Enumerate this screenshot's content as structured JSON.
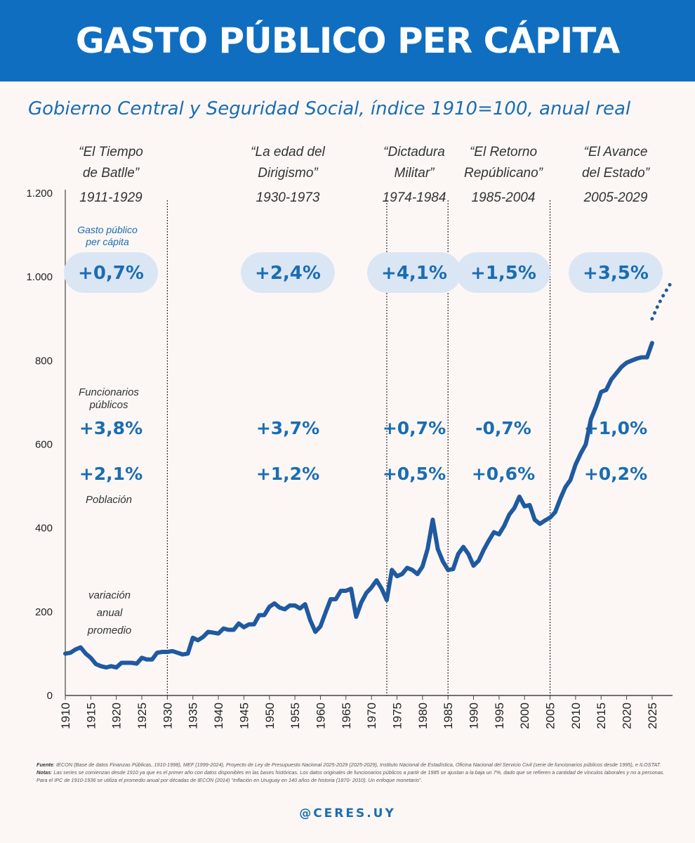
{
  "header": {
    "title": "GASTO PÚBLICO PER CÁPITA",
    "subtitle": "Gobierno Central y Seguridad Social, índice 1910=100, anual real"
  },
  "colors": {
    "banner": "#0f6ec0",
    "line": "#1f5aa0",
    "accent_text": "#1a6db3",
    "pill": "#dbe6f4"
  },
  "labels": {
    "gasto_label": [
      "Gasto público",
      "per cápita"
    ],
    "funcionarios_label": [
      "Funcionarios",
      "públicos"
    ],
    "poblacion_label": "Población",
    "variacion_label": [
      "variación",
      "anual",
      "promedio"
    ]
  },
  "eras": [
    {
      "title": [
        "“El Tiempo",
        "de Batlle”"
      ],
      "years": "1911-1929",
      "gasto": "+0,7%",
      "funcionarios": "+3,8%",
      "poblacion": "+2,1%"
    },
    {
      "title": [
        "“La edad del",
        "Dirigismo”"
      ],
      "years": "1930-1973",
      "gasto": "+2,4%",
      "funcionarios": "+3,7%",
      "poblacion": "+1,2%"
    },
    {
      "title": [
        "“Dictadura",
        "Militar”"
      ],
      "years": "1974-1984",
      "gasto": "+4,1%",
      "funcionarios": "+0,7%",
      "poblacion": "+0,5%"
    },
    {
      "title": [
        "“El Retorno",
        "Repúblicano”"
      ],
      "years": "1985-2004",
      "gasto": "+1,5%",
      "funcionarios": "-0,7%",
      "poblacion": "+0,6%"
    },
    {
      "title": [
        "“El Avance",
        "del Estado”"
      ],
      "years": "2005-2029",
      "gasto": "+3,5%",
      "funcionarios": "+1,0%",
      "poblacion": "+0,2%"
    }
  ],
  "footer": {
    "fuente_label": "Fuente",
    "fuente_text": ": IECON (Base de datos Finanzas Públicas, 1910-1998), MEF (1999-2024), Proyecto de Ley de Presupuesto Nacional 2025-2029 (2025-2029), Instituto Nacional de Estadística, Oficina Nacional del Servicio Civil (serie de funcionarios públicos desde 1995), e ILOSTAT. ",
    "notas_label": "Notas",
    "notas_text": ": Las series se comienzan desde 1910 ya que es el primer año con datos disponibles en las bases históricas. Los datos originales de funcionarios públicos a partir de 1985 se ajustan a la baja un 7%, dado que se refieren a cantidad de vínculos laborales y no a personas. Para el IPC de 1910-1936 se utiliza el promedio anual por décadas de IECON (2014) “Inflación en Uruguay en 140 años de historia (1870- 2010). Un enfoque monetario”.",
    "handle": "@CERES.UY"
  },
  "chart_data": {
    "type": "line",
    "title": "GASTO PÚBLICO PER CÁPITA",
    "subtitle": "Gobierno Central y Seguridad Social, índice 1910=100, anual real",
    "xlim": [
      1910,
      2029
    ],
    "ylim": [
      0,
      1200
    ],
    "xticks": [
      "1910",
      "1915",
      "1920",
      "1925",
      "1930",
      "1935",
      "1940",
      "1945",
      "1950",
      "1955",
      "1960",
      "1965",
      "1970",
      "1975",
      "1980",
      "1985",
      "1990",
      "1995",
      "2000",
      "2005",
      "2010",
      "2015",
      "2020",
      "2025"
    ],
    "yticks": [
      {
        "v": 0,
        "label": "0"
      },
      {
        "v": 200,
        "label": "200"
      },
      {
        "v": 400,
        "label": "400"
      },
      {
        "v": 600,
        "label": "600"
      },
      {
        "v": 800,
        "label": "800"
      },
      {
        "v": 1000,
        "label": "1.000"
      },
      {
        "v": 1200,
        "label": "1.200"
      }
    ],
    "era_dividers": [
      1930,
      1973,
      1985,
      2005
    ],
    "series": [
      {
        "name": "Gasto público per cápita (histórico)",
        "x": [
          1910,
          1911,
          1912,
          1913,
          1914,
          1915,
          1916,
          1917,
          1918,
          1919,
          1920,
          1921,
          1922,
          1923,
          1924,
          1925,
          1926,
          1927,
          1928,
          1929,
          1930,
          1931,
          1932,
          1933,
          1934,
          1935,
          1936,
          1937,
          1938,
          1939,
          1940,
          1941,
          1942,
          1943,
          1944,
          1945,
          1946,
          1947,
          1948,
          1949,
          1950,
          1951,
          1952,
          1953,
          1954,
          1955,
          1956,
          1957,
          1958,
          1959,
          1960,
          1961,
          1962,
          1963,
          1964,
          1965,
          1966,
          1967,
          1968,
          1969,
          1970,
          1971,
          1972,
          1973,
          1974,
          1975,
          1976,
          1977,
          1978,
          1979,
          1980,
          1981,
          1982,
          1983,
          1984,
          1985,
          1986,
          1987,
          1988,
          1989,
          1990,
          1991,
          1992,
          1993,
          1994,
          1995,
          1996,
          1997,
          1998,
          1999,
          2000,
          2001,
          2002,
          2003,
          2004,
          2005,
          2006,
          2007,
          2008,
          2009,
          2010,
          2011,
          2012,
          2013,
          2014,
          2015,
          2016,
          2017,
          2018,
          2019,
          2020,
          2021,
          2022,
          2023,
          2024,
          2025
        ],
        "y": [
          100,
          102,
          110,
          115,
          100,
          90,
          75,
          70,
          67,
          70,
          67,
          78,
          78,
          78,
          76,
          90,
          86,
          86,
          102,
          104,
          104,
          106,
          102,
          98,
          100,
          138,
          132,
          140,
          152,
          150,
          148,
          160,
          157,
          157,
          172,
          163,
          170,
          170,
          192,
          192,
          212,
          220,
          210,
          206,
          215,
          215,
          208,
          218,
          180,
          152,
          165,
          198,
          230,
          230,
          250,
          250,
          255,
          188,
          222,
          245,
          258,
          275,
          255,
          228,
          300,
          285,
          290,
          305,
          300,
          290,
          308,
          350,
          420,
          350,
          320,
          300,
          302,
          338,
          355,
          338,
          310,
          322,
          348,
          370,
          390,
          385,
          405,
          432,
          448,
          475,
          452,
          455,
          420,
          410,
          418,
          425,
          438,
          470,
          498,
          515,
          552,
          578,
          600,
          660,
          690,
          725,
          730,
          755,
          770,
          785,
          795,
          800,
          805,
          808,
          808,
          842
        ],
        "style": "solid"
      },
      {
        "name": "Proyección presupuesto 2025-2029",
        "x": [
          2025,
          2026,
          2027,
          2028,
          2029
        ],
        "y": [
          900,
          928,
          952,
          972,
          992
        ],
        "style": "dotted"
      }
    ]
  }
}
